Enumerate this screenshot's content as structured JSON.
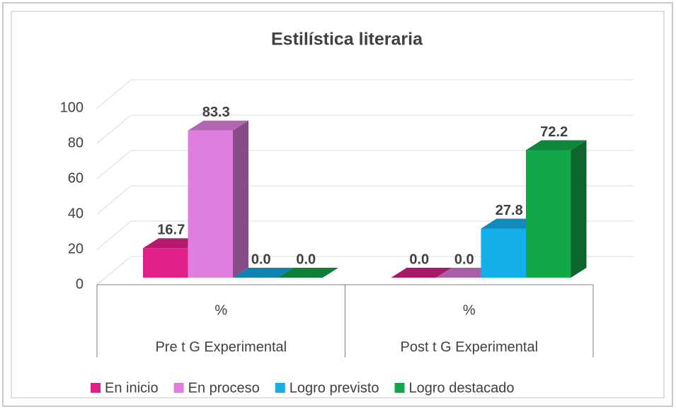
{
  "chart_data": {
    "type": "bar3d",
    "title": "Estilística literaria",
    "categories": [
      "Pre t G Experimental",
      "Post t G Experimental"
    ],
    "category_sublabels": [
      "%",
      "%"
    ],
    "series": [
      {
        "name": "En inicio",
        "color": "#e0218a",
        "values": [
          16.7,
          0.0
        ],
        "value_labels": [
          "16.7",
          "0.0"
        ]
      },
      {
        "name": "En proceso",
        "color": "#e07ee0",
        "values": [
          83.3,
          0.0
        ],
        "value_labels": [
          "83.3",
          "0.0"
        ]
      },
      {
        "name": "Logro previsto",
        "color": "#14aee8",
        "values": [
          0.0,
          27.8
        ],
        "value_labels": [
          "0.0",
          "27.8"
        ]
      },
      {
        "name": "Logro destacado",
        "color": "#12a84a",
        "values": [
          0.0,
          72.2
        ],
        "value_labels": [
          "0.0",
          "72.2"
        ]
      }
    ],
    "ylim": [
      0,
      100
    ],
    "yticks": [
      0,
      20,
      40,
      60,
      80,
      100
    ],
    "grid": true,
    "legend": "bottom"
  }
}
